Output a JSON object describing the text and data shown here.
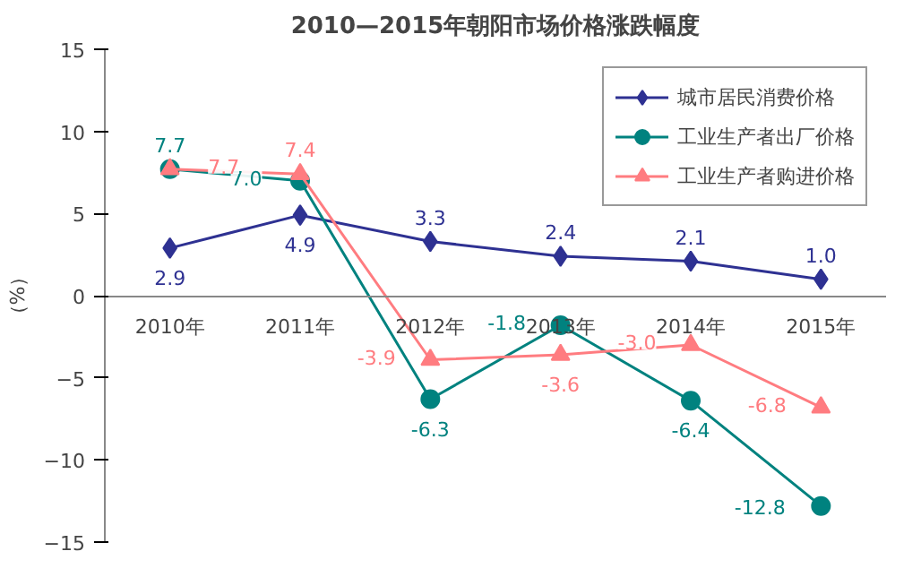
{
  "chart_data": {
    "type": "line",
    "title": "2010—2015年朝阳市场价格涨跌幅度",
    "ylabel": "（%）",
    "categories": [
      "2010年",
      "2011年",
      "2012年",
      "2013年",
      "2014年",
      "2015年"
    ],
    "series": [
      {
        "name": "城市居民消费价格",
        "color": "#2e3192",
        "values": [
          2.9,
          4.9,
          3.3,
          2.4,
          2.1,
          1.0
        ],
        "value_labels": [
          "2.9",
          "4.9",
          "3.3",
          "2.4",
          "2.1",
          "1.0"
        ],
        "marker": "diamond"
      },
      {
        "name": "工业生产者出厂价格",
        "color": "#00827f",
        "values": [
          7.7,
          7.0,
          -6.3,
          -1.8,
          -6.4,
          -12.8
        ],
        "value_labels": [
          "7.7",
          "7.0",
          "-6.3",
          "-1.8",
          "-6.4",
          "-12.8"
        ],
        "marker": "circle"
      },
      {
        "name": "工业生产者购进价格",
        "color": "#ff7c80",
        "values": [
          7.7,
          7.4,
          -3.9,
          -3.6,
          -3.0,
          -6.8
        ],
        "value_labels": [
          "7.7",
          "7.4",
          "-3.9",
          "-3.6",
          "-3.0",
          "-6.8"
        ],
        "marker": "triangle"
      }
    ],
    "ylim": [
      -15,
      15
    ],
    "yticks": [
      -15,
      -10,
      -5,
      0,
      5,
      10,
      15
    ],
    "grid": false,
    "legend": "top right",
    "data_labels": true,
    "line_style": "solid"
  }
}
